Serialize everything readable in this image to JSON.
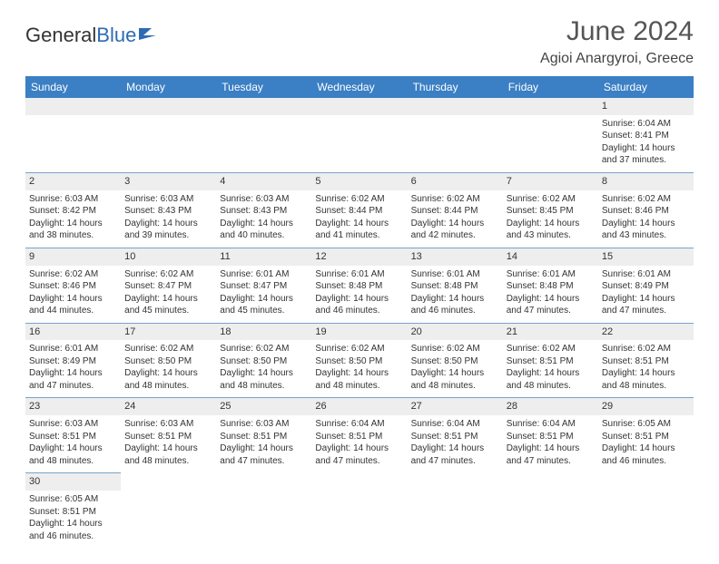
{
  "brand": {
    "part1": "General",
    "part2": "Blue"
  },
  "title": "June 2024",
  "location": "Agioi Anargyroi, Greece",
  "colors": {
    "header_bg": "#3b7fc4",
    "header_text": "#ffffff",
    "row_divider": "#7aa3cc",
    "daynum_bg": "#eeeeee",
    "text": "#333333",
    "title_color": "#555555",
    "brand_blue": "#2d6bb3"
  },
  "dayNames": [
    "Sunday",
    "Monday",
    "Tuesday",
    "Wednesday",
    "Thursday",
    "Friday",
    "Saturday"
  ],
  "weeks": [
    [
      null,
      null,
      null,
      null,
      null,
      null,
      {
        "n": "1",
        "sr": "6:04 AM",
        "ss": "8:41 PM",
        "dl": "14 hours",
        "dm": "37 minutes."
      }
    ],
    [
      {
        "n": "2",
        "sr": "6:03 AM",
        "ss": "8:42 PM",
        "dl": "14 hours",
        "dm": "38 minutes."
      },
      {
        "n": "3",
        "sr": "6:03 AM",
        "ss": "8:43 PM",
        "dl": "14 hours",
        "dm": "39 minutes."
      },
      {
        "n": "4",
        "sr": "6:03 AM",
        "ss": "8:43 PM",
        "dl": "14 hours",
        "dm": "40 minutes."
      },
      {
        "n": "5",
        "sr": "6:02 AM",
        "ss": "8:44 PM",
        "dl": "14 hours",
        "dm": "41 minutes."
      },
      {
        "n": "6",
        "sr": "6:02 AM",
        "ss": "8:44 PM",
        "dl": "14 hours",
        "dm": "42 minutes."
      },
      {
        "n": "7",
        "sr": "6:02 AM",
        "ss": "8:45 PM",
        "dl": "14 hours",
        "dm": "43 minutes."
      },
      {
        "n": "8",
        "sr": "6:02 AM",
        "ss": "8:46 PM",
        "dl": "14 hours",
        "dm": "43 minutes."
      }
    ],
    [
      {
        "n": "9",
        "sr": "6:02 AM",
        "ss": "8:46 PM",
        "dl": "14 hours",
        "dm": "44 minutes."
      },
      {
        "n": "10",
        "sr": "6:02 AM",
        "ss": "8:47 PM",
        "dl": "14 hours",
        "dm": "45 minutes."
      },
      {
        "n": "11",
        "sr": "6:01 AM",
        "ss": "8:47 PM",
        "dl": "14 hours",
        "dm": "45 minutes."
      },
      {
        "n": "12",
        "sr": "6:01 AM",
        "ss": "8:48 PM",
        "dl": "14 hours",
        "dm": "46 minutes."
      },
      {
        "n": "13",
        "sr": "6:01 AM",
        "ss": "8:48 PM",
        "dl": "14 hours",
        "dm": "46 minutes."
      },
      {
        "n": "14",
        "sr": "6:01 AM",
        "ss": "8:48 PM",
        "dl": "14 hours",
        "dm": "47 minutes."
      },
      {
        "n": "15",
        "sr": "6:01 AM",
        "ss": "8:49 PM",
        "dl": "14 hours",
        "dm": "47 minutes."
      }
    ],
    [
      {
        "n": "16",
        "sr": "6:01 AM",
        "ss": "8:49 PM",
        "dl": "14 hours",
        "dm": "47 minutes."
      },
      {
        "n": "17",
        "sr": "6:02 AM",
        "ss": "8:50 PM",
        "dl": "14 hours",
        "dm": "48 minutes."
      },
      {
        "n": "18",
        "sr": "6:02 AM",
        "ss": "8:50 PM",
        "dl": "14 hours",
        "dm": "48 minutes."
      },
      {
        "n": "19",
        "sr": "6:02 AM",
        "ss": "8:50 PM",
        "dl": "14 hours",
        "dm": "48 minutes."
      },
      {
        "n": "20",
        "sr": "6:02 AM",
        "ss": "8:50 PM",
        "dl": "14 hours",
        "dm": "48 minutes."
      },
      {
        "n": "21",
        "sr": "6:02 AM",
        "ss": "8:51 PM",
        "dl": "14 hours",
        "dm": "48 minutes."
      },
      {
        "n": "22",
        "sr": "6:02 AM",
        "ss": "8:51 PM",
        "dl": "14 hours",
        "dm": "48 minutes."
      }
    ],
    [
      {
        "n": "23",
        "sr": "6:03 AM",
        "ss": "8:51 PM",
        "dl": "14 hours",
        "dm": "48 minutes."
      },
      {
        "n": "24",
        "sr": "6:03 AM",
        "ss": "8:51 PM",
        "dl": "14 hours",
        "dm": "48 minutes."
      },
      {
        "n": "25",
        "sr": "6:03 AM",
        "ss": "8:51 PM",
        "dl": "14 hours",
        "dm": "47 minutes."
      },
      {
        "n": "26",
        "sr": "6:04 AM",
        "ss": "8:51 PM",
        "dl": "14 hours",
        "dm": "47 minutes."
      },
      {
        "n": "27",
        "sr": "6:04 AM",
        "ss": "8:51 PM",
        "dl": "14 hours",
        "dm": "47 minutes."
      },
      {
        "n": "28",
        "sr": "6:04 AM",
        "ss": "8:51 PM",
        "dl": "14 hours",
        "dm": "47 minutes."
      },
      {
        "n": "29",
        "sr": "6:05 AM",
        "ss": "8:51 PM",
        "dl": "14 hours",
        "dm": "46 minutes."
      }
    ],
    [
      {
        "n": "30",
        "sr": "6:05 AM",
        "ss": "8:51 PM",
        "dl": "14 hours",
        "dm": "46 minutes."
      },
      null,
      null,
      null,
      null,
      null,
      null
    ]
  ],
  "labels": {
    "sunrise": "Sunrise:",
    "sunset": "Sunset:",
    "daylight": "Daylight:",
    "and": "and"
  }
}
